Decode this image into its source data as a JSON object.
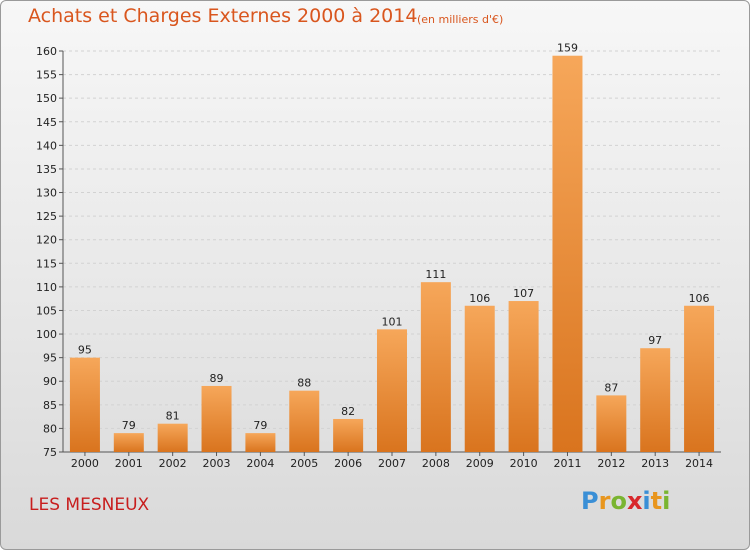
{
  "header": {
    "title": "Achats et Charges Externes 2000 à 2014",
    "subtitle": "(en milliers d'€)"
  },
  "footer": {
    "location": "LES MESNEUX",
    "brand": "Proxiti",
    "brand_letters": [
      {
        "char": "P",
        "color": "#3a8fd6"
      },
      {
        "char": "r",
        "color": "#e8961e"
      },
      {
        "char": "o",
        "color": "#7ab531"
      },
      {
        "char": "x",
        "color": "#d8282c"
      },
      {
        "char": "i",
        "color": "#3a8fd6"
      },
      {
        "char": "t",
        "color": "#e8961e"
      },
      {
        "char": "i",
        "color": "#7ab531"
      }
    ]
  },
  "colors": {
    "bar_top": "#f6a75a",
    "bar_bottom": "#d9741e",
    "title": "#d9561e",
    "location": "#c81e1e"
  },
  "chart_data": {
    "type": "bar",
    "categories": [
      "2000",
      "2001",
      "2002",
      "2003",
      "2004",
      "2005",
      "2006",
      "2007",
      "2008",
      "2009",
      "2010",
      "2011",
      "2012",
      "2013",
      "2014"
    ],
    "values": [
      95,
      79,
      81,
      89,
      79,
      88,
      82,
      101,
      111,
      106,
      107,
      159,
      87,
      97,
      106
    ],
    "title": "Achats et Charges Externes 2000 à 2014",
    "ylim": [
      75,
      160
    ],
    "yticks": [
      75,
      80,
      85,
      90,
      95,
      100,
      105,
      110,
      115,
      120,
      125,
      130,
      135,
      140,
      145,
      150,
      155,
      160
    ],
    "grid": true
  }
}
